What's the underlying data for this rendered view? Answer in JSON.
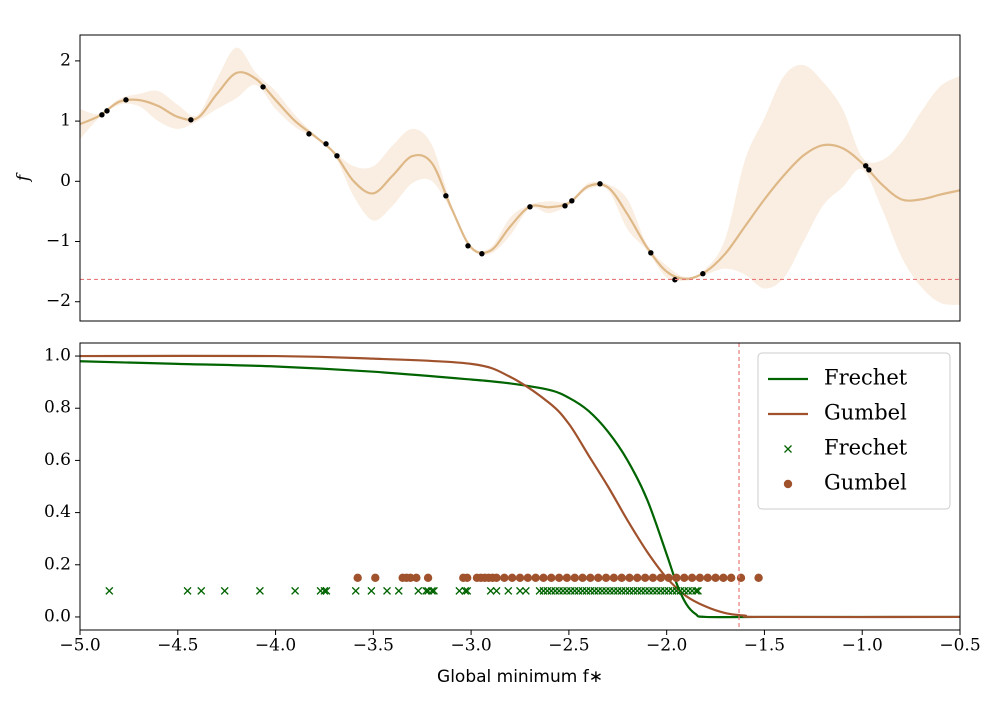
{
  "chart_data": [
    {
      "type": "line",
      "ylabel": "f",
      "xlim": [
        -5.0,
        -0.5
      ],
      "ylim": [
        -2.32,
        2.43
      ],
      "yticks": [
        {
          "value": -2,
          "label": "−2"
        },
        {
          "value": -1,
          "label": "−1"
        },
        0,
        1,
        2
      ],
      "series": [
        {
          "type": "area",
          "color": "#faeee2",
          "x": [
            -5.0,
            -4.9,
            -4.8,
            -4.7,
            -4.6,
            -4.5,
            -4.4,
            -4.3,
            -4.2,
            -4.1,
            -4.0,
            -3.9,
            -3.8,
            -3.7,
            -3.6,
            -3.5,
            -3.4,
            -3.3,
            -3.2,
            -3.1,
            -3.0,
            -2.9,
            -2.8,
            -2.7,
            -2.6,
            -2.5,
            -2.4,
            -2.3,
            -2.2,
            -2.1,
            -2.0,
            -1.9,
            -1.8,
            -1.7,
            -1.6,
            -1.5,
            -1.4,
            -1.3,
            -1.2,
            -1.1,
            -1.0,
            -0.9,
            -0.8,
            -0.7,
            -0.6,
            -0.5
          ],
          "lower": [
            0.7,
            1.06,
            1.27,
            1.25,
            1.0,
            0.87,
            1.0,
            1.2,
            1.38,
            1.6,
            1.2,
            0.9,
            0.72,
            0.44,
            -0.25,
            -0.65,
            -0.4,
            -0.03,
            0.0,
            -0.5,
            -1.13,
            -1.2,
            -0.9,
            -0.45,
            -0.53,
            -0.39,
            -0.13,
            -0.15,
            -0.8,
            -1.15,
            -1.6,
            -1.65,
            -1.55,
            -1.45,
            -1.55,
            -1.78,
            -1.6,
            -1.0,
            -0.4,
            -0.1,
            0.2,
            -0.45,
            -1.25,
            -1.75,
            -2.02,
            -2.05
          ],
          "upper": [
            1.2,
            1.12,
            1.37,
            1.45,
            1.5,
            1.27,
            1.1,
            1.7,
            2.22,
            1.8,
            1.5,
            1.1,
            0.78,
            0.5,
            0.25,
            0.25,
            0.6,
            0.87,
            0.6,
            -0.4,
            -1.07,
            -1.1,
            -0.6,
            -0.39,
            -0.33,
            -0.33,
            -0.03,
            -0.05,
            -0.3,
            -1.05,
            -1.4,
            -1.59,
            -1.45,
            -0.95,
            0.35,
            1.05,
            1.75,
            1.93,
            1.65,
            1.2,
            0.4,
            0.35,
            0.65,
            1.15,
            1.58,
            1.75
          ]
        },
        {
          "type": "line",
          "color": "#deb887",
          "x": [
            -5.0,
            -4.9,
            -4.8,
            -4.7,
            -4.6,
            -4.5,
            -4.4,
            -4.3,
            -4.2,
            -4.1,
            -4.0,
            -3.9,
            -3.8,
            -3.7,
            -3.6,
            -3.5,
            -3.4,
            -3.3,
            -3.2,
            -3.1,
            -3.0,
            -2.9,
            -2.8,
            -2.7,
            -2.6,
            -2.5,
            -2.4,
            -2.3,
            -2.2,
            -2.1,
            -2.0,
            -1.9,
            -1.8,
            -1.7,
            -1.6,
            -1.5,
            -1.4,
            -1.3,
            -1.2,
            -1.1,
            -1.0,
            -0.9,
            -0.8,
            -0.7,
            -0.6,
            -0.5
          ],
          "values": [
            0.95,
            1.09,
            1.32,
            1.35,
            1.25,
            1.07,
            1.05,
            1.45,
            1.8,
            1.7,
            1.35,
            1.0,
            0.75,
            0.47,
            0.0,
            -0.2,
            0.1,
            0.42,
            0.3,
            -0.45,
            -1.1,
            -1.15,
            -0.75,
            -0.42,
            -0.43,
            -0.36,
            -0.08,
            -0.1,
            -0.55,
            -1.1,
            -1.5,
            -1.62,
            -1.5,
            -1.2,
            -0.75,
            -0.3,
            0.1,
            0.43,
            0.6,
            0.55,
            0.3,
            -0.05,
            -0.3,
            -0.3,
            -0.22,
            -0.15
          ]
        },
        {
          "type": "scatter",
          "marker": "dot",
          "color": "#000000",
          "x": [
            -4.888,
            -4.862,
            -4.765,
            -4.433,
            -4.064,
            -3.829,
            -3.742,
            -3.686,
            -3.129,
            -3.016,
            -2.945,
            -2.699,
            -2.52,
            -2.485,
            -2.341,
            -2.081,
            -1.958,
            -1.815,
            -0.982,
            -0.966
          ],
          "values": [
            1.104,
            1.17,
            1.353,
            1.021,
            1.568,
            0.788,
            0.622,
            0.423,
            -0.241,
            -1.071,
            -1.203,
            -0.423,
            -0.407,
            -0.324,
            -0.041,
            -1.187,
            -1.635,
            -1.535,
            0.257,
            0.191
          ]
        }
      ],
      "hline": {
        "value": -1.63,
        "color": "#e8797a"
      }
    },
    {
      "type": "line",
      "xlabel": "Global minimum f∗",
      "xlim": [
        -5.0,
        -0.5
      ],
      "ylim": [
        -0.05,
        1.05
      ],
      "xticks": [
        {
          "value": -5.0,
          "label": "−5.0"
        },
        {
          "value": -4.5,
          "label": "−4.5"
        },
        {
          "value": -4.0,
          "label": "−4.0"
        },
        {
          "value": -3.5,
          "label": "−3.5"
        },
        {
          "value": -3.0,
          "label": "−3.0"
        },
        {
          "value": -2.5,
          "label": "−2.5"
        },
        {
          "value": -2.0,
          "label": "−2.0"
        },
        {
          "value": -1.5,
          "label": "−1.5"
        },
        {
          "value": -1.0,
          "label": "−1.0"
        },
        {
          "value": -0.5,
          "label": "−0.5"
        }
      ],
      "yticks": [
        {
          "value": 0,
          "label": "0.0"
        },
        0.2,
        0.4,
        0.6,
        0.8,
        {
          "value": 1,
          "label": "1.0"
        }
      ],
      "legend": "upper right",
      "series": [
        {
          "type": "line",
          "name": "Frechet",
          "color": "#006400",
          "x": [
            -5.0,
            -4.5,
            -4.0,
            -3.5,
            -3.0,
            -2.8,
            -2.6,
            -2.5,
            -2.4,
            -2.3,
            -2.2,
            -2.1,
            -2.0,
            -1.95,
            -1.9,
            -1.85,
            -1.8,
            -1.5,
            -0.5
          ],
          "values": [
            0.98,
            0.97,
            0.96,
            0.94,
            0.91,
            0.895,
            0.87,
            0.84,
            0.79,
            0.71,
            0.6,
            0.45,
            0.24,
            0.13,
            0.05,
            0.01,
            0.0,
            0.0,
            0.0
          ]
        },
        {
          "type": "line",
          "name": "Gumbel",
          "color": "#a0522d",
          "x": [
            -5.0,
            -4.0,
            -3.5,
            -3.0,
            -2.8,
            -2.6,
            -2.5,
            -2.4,
            -2.3,
            -2.2,
            -2.1,
            -2.0,
            -1.9,
            -1.8,
            -1.7,
            -1.6,
            -1.5,
            -0.5
          ],
          "values": [
            1.0,
            1.0,
            0.99,
            0.97,
            0.92,
            0.82,
            0.74,
            0.62,
            0.5,
            0.37,
            0.25,
            0.15,
            0.08,
            0.04,
            0.015,
            0.005,
            0.0,
            0.0
          ]
        },
        {
          "type": "scatter",
          "name": "Frechet",
          "marker": "x",
          "color": "#006400",
          "x": [
            -4.85,
            -4.45,
            -4.38,
            -4.26,
            -4.08,
            -3.9,
            -3.77,
            -3.75,
            -3.74,
            -3.59,
            -3.51,
            -3.43,
            -3.37,
            -3.27,
            -3.23,
            -3.22,
            -3.2,
            -3.19,
            -3.06,
            -3.03,
            -3.02,
            -2.9,
            -2.87,
            -2.81,
            -2.75,
            -2.72,
            -2.65,
            -2.63,
            -2.61,
            -2.59,
            -2.57,
            -2.55,
            -2.53,
            -2.51,
            -2.49,
            -2.47,
            -2.45,
            -2.43,
            -2.41,
            -2.39,
            -2.37,
            -2.35,
            -2.33,
            -2.31,
            -2.29,
            -2.27,
            -2.25,
            -2.23,
            -2.21,
            -2.19,
            -2.17,
            -2.15,
            -2.13,
            -2.11,
            -2.09,
            -2.07,
            -2.05,
            -2.03,
            -2.01,
            -1.99,
            -1.97,
            -1.95,
            -1.93,
            -1.91,
            -1.89,
            -1.87,
            -1.85,
            -1.84
          ],
          "values": [
            0.1,
            0.1,
            0.1,
            0.1,
            0.1,
            0.1,
            0.1,
            0.1,
            0.1,
            0.1,
            0.1,
            0.1,
            0.1,
            0.1,
            0.1,
            0.1,
            0.1,
            0.1,
            0.1,
            0.1,
            0.1,
            0.1,
            0.1,
            0.1,
            0.1,
            0.1,
            0.1,
            0.1,
            0.1,
            0.1,
            0.1,
            0.1,
            0.1,
            0.1,
            0.1,
            0.1,
            0.1,
            0.1,
            0.1,
            0.1,
            0.1,
            0.1,
            0.1,
            0.1,
            0.1,
            0.1,
            0.1,
            0.1,
            0.1,
            0.1,
            0.1,
            0.1,
            0.1,
            0.1,
            0.1,
            0.1,
            0.1,
            0.1,
            0.1,
            0.1,
            0.1,
            0.1,
            0.1,
            0.1,
            0.1,
            0.1,
            0.1,
            0.1
          ]
        },
        {
          "type": "scatter",
          "name": "Gumbel",
          "marker": "circle",
          "color": "#a0522d",
          "x": [
            -3.58,
            -3.49,
            -3.35,
            -3.33,
            -3.31,
            -3.28,
            -3.22,
            -3.04,
            -3.02,
            -2.97,
            -2.95,
            -2.93,
            -2.91,
            -2.89,
            -2.87,
            -2.83,
            -2.79,
            -2.75,
            -2.71,
            -2.67,
            -2.63,
            -2.59,
            -2.55,
            -2.51,
            -2.47,
            -2.43,
            -2.39,
            -2.35,
            -2.31,
            -2.27,
            -2.23,
            -2.19,
            -2.15,
            -2.11,
            -2.07,
            -2.03,
            -1.99,
            -1.95,
            -1.91,
            -1.87,
            -1.83,
            -1.79,
            -1.75,
            -1.71,
            -1.67,
            -1.62,
            -1.53
          ],
          "values": [
            0.15,
            0.15,
            0.15,
            0.15,
            0.15,
            0.15,
            0.15,
            0.15,
            0.15,
            0.15,
            0.15,
            0.15,
            0.15,
            0.15,
            0.15,
            0.15,
            0.15,
            0.15,
            0.15,
            0.15,
            0.15,
            0.15,
            0.15,
            0.15,
            0.15,
            0.15,
            0.15,
            0.15,
            0.15,
            0.15,
            0.15,
            0.15,
            0.15,
            0.15,
            0.15,
            0.15,
            0.15,
            0.15,
            0.15,
            0.15,
            0.15,
            0.15,
            0.15,
            0.15,
            0.15,
            0.15,
            0.15
          ]
        }
      ],
      "vline": {
        "value": -1.63,
        "color": "#e8797a"
      }
    }
  ]
}
